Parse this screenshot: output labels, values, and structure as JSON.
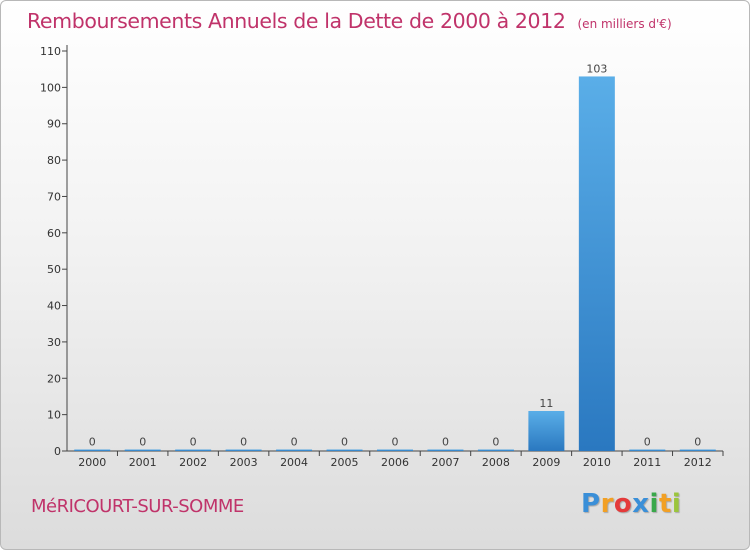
{
  "header": {
    "title": "Remboursements Annuels de la Dette de 2000 à 2012",
    "unit": "(en milliers d'€)"
  },
  "footer": {
    "town": "MéRICOURT-SUR-SOMME",
    "logo": "Proxiti"
  },
  "colors": {
    "title": "#c0336a",
    "bar_top": "#5aaee8",
    "bar_bottom": "#2a78c0",
    "axis": "#444444"
  },
  "chart_data": {
    "type": "bar",
    "title": "Remboursements Annuels de la Dette de 2000 à 2012",
    "xlabel": "",
    "ylabel": "",
    "categories": [
      "2000",
      "2001",
      "2002",
      "2003",
      "2004",
      "2005",
      "2006",
      "2007",
      "2008",
      "2009",
      "2010",
      "2011",
      "2012"
    ],
    "values": [
      0,
      0,
      0,
      0,
      0,
      0,
      0,
      0,
      0,
      11,
      103,
      0,
      0
    ],
    "ylim": [
      0,
      110
    ],
    "yticks": [
      0,
      10,
      20,
      30,
      40,
      50,
      60,
      70,
      80,
      90,
      100,
      110
    ],
    "grid": false,
    "legend": "none"
  }
}
